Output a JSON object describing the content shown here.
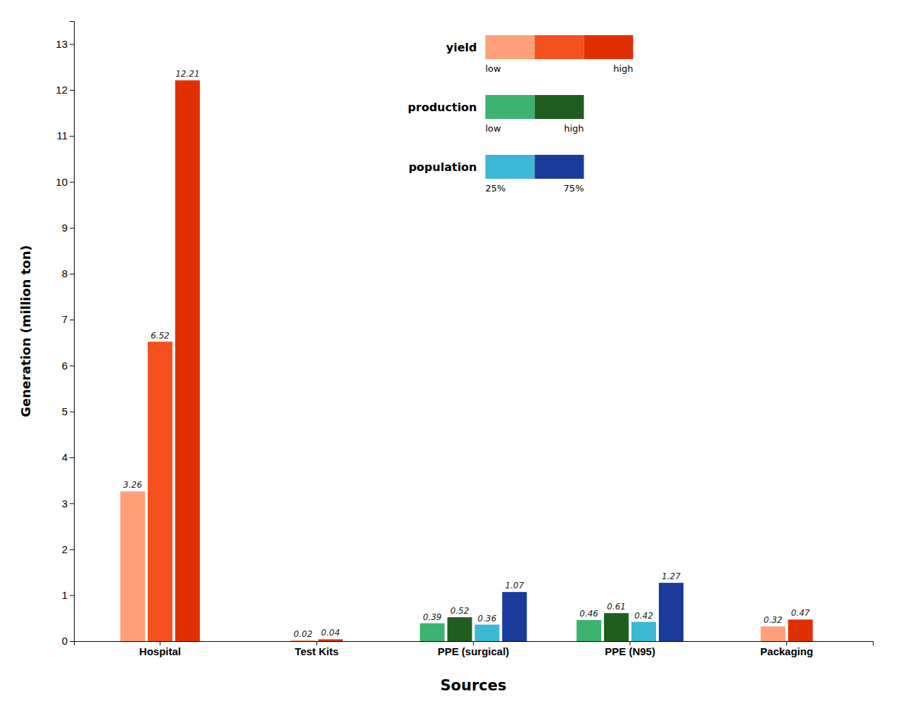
{
  "chart_data": {
    "type": "bar",
    "xlabel": "Sources",
    "ylabel": "Generation (million ton)",
    "categories": [
      "Hospital",
      "Test Kits",
      "PPE (surgical)",
      "PPE (N95)",
      "Packaging"
    ],
    "series": [
      {
        "color": "#FFA07A",
        "values": [
          3.26,
          0.02,
          null,
          null,
          0.32
        ]
      },
      {
        "color": "#F4511E",
        "values": [
          6.52,
          null,
          null,
          null,
          null
        ]
      },
      {
        "color": "#E03000",
        "values": [
          12.21,
          0.04,
          null,
          null,
          0.47
        ]
      },
      {
        "color": "#3CB371",
        "values": [
          null,
          null,
          0.39,
          0.46,
          null
        ]
      },
      {
        "color": "#1F5E1F",
        "values": [
          null,
          null,
          0.52,
          0.61,
          null
        ]
      },
      {
        "color": "#3DB8D4",
        "values": [
          null,
          null,
          0.36,
          0.42,
          null
        ]
      },
      {
        "color": "#1A3A9C",
        "values": [
          null,
          null,
          1.07,
          1.27,
          null
        ]
      }
    ],
    "ylim": [
      0,
      13.5
    ],
    "yticks": [
      0,
      1,
      2,
      3,
      4,
      5,
      6,
      7,
      8,
      9,
      10,
      11,
      12,
      13
    ],
    "grid": false,
    "data_labels": true,
    "legend": "upper right",
    "legend_groups": [
      {
        "name": "yield",
        "colors": [
          "#FFA07A",
          "#F4511E",
          "#E03000"
        ],
        "labels": [
          "low",
          "high"
        ]
      },
      {
        "name": "production",
        "colors": [
          "#3CB371",
          "#1F5E1F"
        ],
        "labels": [
          "low",
          "high"
        ]
      },
      {
        "name": "population",
        "colors": [
          "#3DB8D4",
          "#1A3A9C"
        ],
        "labels": [
          "25%",
          "75%"
        ]
      }
    ]
  }
}
